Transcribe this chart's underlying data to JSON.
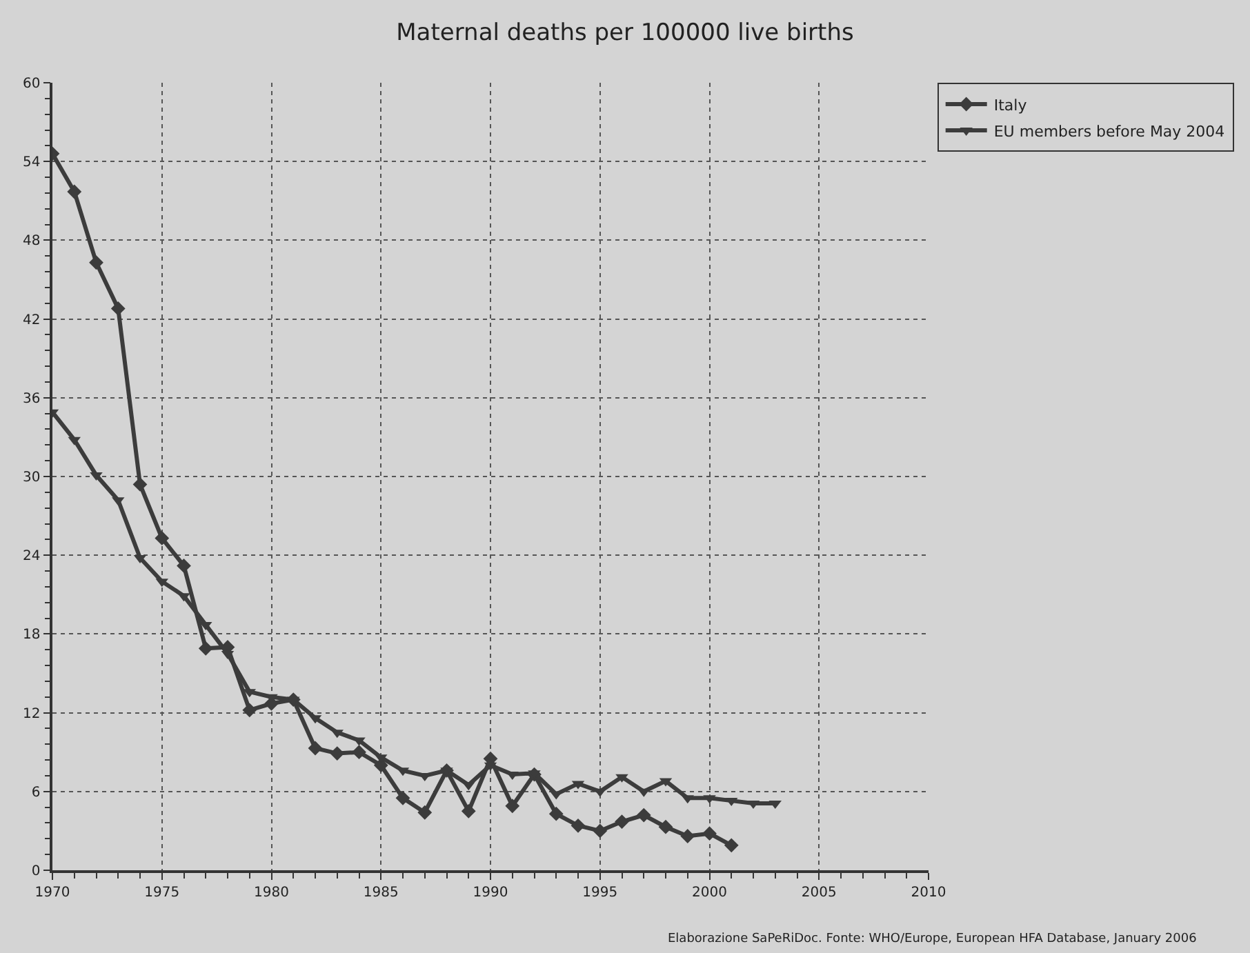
{
  "chart_data": {
    "type": "line",
    "title": "Maternal deaths per 100000 live births",
    "x": [
      1970,
      1971,
      1972,
      1973,
      1974,
      1975,
      1976,
      1977,
      1978,
      1979,
      1980,
      1981,
      1982,
      1983,
      1984,
      1985,
      1986,
      1987,
      1988,
      1989,
      1990,
      1991,
      1992,
      1993,
      1994,
      1995,
      1996,
      1997,
      1998,
      1999,
      2000,
      2001,
      2002,
      2003
    ],
    "series": [
      {
        "name": "Italy",
        "color": "#3c3c3c",
        "marker": "diamond",
        "values": [
          54.6,
          51.7,
          46.3,
          42.8,
          29.4,
          25.3,
          23.2,
          16.9,
          17.0,
          12.2,
          12.7,
          13.0,
          9.3,
          8.9,
          9.0,
          8.0,
          5.5,
          4.4,
          7.6,
          4.5,
          8.5,
          4.9,
          7.3,
          4.3,
          3.4,
          3.0,
          3.7,
          4.2,
          3.3,
          2.6,
          2.8,
          1.9,
          null,
          null
        ]
      },
      {
        "name": "EU members before May 2004",
        "color": "#3c3c3c",
        "marker": "triangle",
        "values": [
          34.9,
          32.8,
          30.1,
          28.2,
          23.8,
          22.0,
          20.9,
          18.7,
          16.5,
          13.6,
          13.2,
          13.0,
          11.6,
          10.5,
          9.9,
          8.6,
          7.6,
          7.2,
          7.6,
          6.5,
          8.0,
          7.3,
          7.4,
          5.8,
          6.6,
          6.0,
          7.1,
          6.0,
          6.8,
          5.5,
          5.5,
          5.3,
          5.1,
          5.1
        ]
      }
    ],
    "xlim": [
      1970,
      2010
    ],
    "xticks": [
      1970,
      1975,
      1980,
      1985,
      1990,
      1995,
      2000,
      2005,
      2010
    ],
    "ylim": [
      0,
      60
    ],
    "yticks": [
      0,
      6,
      12,
      18,
      24,
      30,
      36,
      42,
      48,
      54,
      60
    ],
    "grid": true,
    "legend": "top right",
    "annotations": [
      "Elaborazione SaPeRiDoc. Fonte: WHO/Europe, European HFA Database, January 2006"
    ]
  }
}
